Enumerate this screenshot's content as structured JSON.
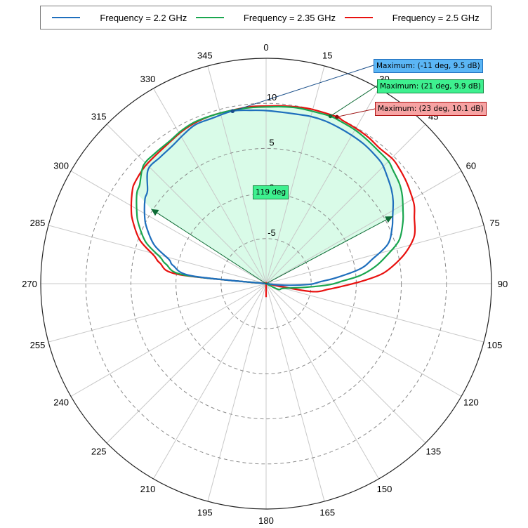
{
  "legend": {
    "items": [
      {
        "label": "Frequency = 2.2 GHz",
        "color": "#1f6fbd"
      },
      {
        "label": "Frequency = 2.35 GHz",
        "color": "#1aa64f"
      },
      {
        "label": "Frequency = 2.5 GHz",
        "color": "#e8110f"
      }
    ]
  },
  "annotations": {
    "max_2_2": "Maximum: (-11 deg, 9.5 dB)",
    "max_2_35": "Maximum: (21 deg, 9.9 dB)",
    "max_2_5": "Maximum: (23 deg, 10.1 dB)",
    "beamwidth": "119 deg"
  },
  "chart_data": {
    "type": "polar-line",
    "title": "",
    "angular_axis": {
      "unit": "deg",
      "direction": "clockwise",
      "zero": "top",
      "ticks": [
        0,
        15,
        30,
        45,
        60,
        75,
        90,
        105,
        120,
        135,
        150,
        165,
        180,
        195,
        210,
        225,
        240,
        255,
        270,
        285,
        300,
        315,
        330,
        345
      ]
    },
    "radial_axis": {
      "unit": "dB",
      "range": [
        -10,
        15
      ],
      "tick_labels": [
        -5,
        0,
        5,
        10
      ],
      "grid_circles": [
        -5,
        0,
        5,
        10
      ],
      "grid_style": "dashed"
    },
    "legend_position": "top",
    "series": [
      {
        "name": "Frequency = 2.2 GHz",
        "color": "#1f6fbd",
        "angles": [
          270,
          276,
          281,
          284,
          289,
          295,
          299,
          305,
          308,
          314,
          320,
          326,
          331,
          336,
          342,
          349,
          355,
          0,
          5,
          10,
          15,
          20,
          25,
          30,
          35,
          40,
          44,
          48,
          53,
          57,
          62,
          66,
          72,
          77,
          81,
          85,
          88,
          91,
          95,
          100,
          120,
          150,
          180,
          210,
          240,
          265
        ],
        "gain_db": [
          -10,
          -1.7,
          0.5,
          1.1,
          3.1,
          4.6,
          5.4,
          6.4,
          6.7,
          8.2,
          8.3,
          8.5,
          8.9,
          9.3,
          9.3,
          9.5,
          9.3,
          9.2,
          9.1,
          9.1,
          9.2,
          9.2,
          9.1,
          9.0,
          8.9,
          8.7,
          8.5,
          8.0,
          7.4,
          6.8,
          5.9,
          5.3,
          4.2,
          2.1,
          0.6,
          -2.1,
          -4.0,
          -5.2,
          -8.0,
          -10,
          -10,
          -10,
          -10,
          -10,
          -10,
          -10
        ]
      },
      {
        "name": "Frequency = 2.35 GHz",
        "color": "#1aa64f",
        "angles": [
          270,
          276,
          281,
          284,
          289,
          295,
          299,
          305,
          308,
          314,
          320,
          326,
          331,
          336,
          342,
          349,
          355,
          0,
          5,
          10,
          15,
          21,
          25,
          30,
          35,
          40,
          45,
          48,
          53,
          57,
          62,
          66,
          72,
          77,
          81,
          85,
          88,
          91,
          95,
          105,
          115,
          120,
          150,
          180,
          210,
          240,
          265
        ],
        "gain_db": [
          -10,
          -0.9,
          1.3,
          2.1,
          4.1,
          5.6,
          6.4,
          7.5,
          7.8,
          8.9,
          9.0,
          9.1,
          9.4,
          9.6,
          9.6,
          9.6,
          9.6,
          9.6,
          9.7,
          9.8,
          9.8,
          9.9,
          9.8,
          9.7,
          9.5,
          9.3,
          9.2,
          8.9,
          8.5,
          8.0,
          7.2,
          6.6,
          5.5,
          3.7,
          2.3,
          0.5,
          -1.5,
          -3.0,
          -5.5,
          -8.0,
          -8.5,
          -10,
          -10,
          -10,
          -10,
          -10,
          -10
        ]
      },
      {
        "name": "Frequency = 2.5 GHz",
        "color": "#e8110f",
        "angles": [
          270,
          276,
          281,
          284,
          289,
          295,
          299,
          305,
          308,
          314,
          320,
          326,
          331,
          336,
          342,
          349,
          355,
          0,
          5,
          10,
          15,
          23,
          25,
          30,
          35,
          40,
          45,
          48,
          53,
          57,
          62,
          66,
          72,
          77,
          81,
          85,
          88,
          91,
          95,
          100,
          105,
          170,
          180,
          190,
          195
        ],
        "gain_db": [
          -10,
          -0.2,
          2.0,
          2.8,
          4.8,
          6.3,
          7.1,
          8.1,
          8.4,
          8.7,
          8.8,
          9.0,
          9.3,
          9.5,
          9.6,
          9.6,
          9.7,
          9.7,
          9.8,
          9.9,
          10.0,
          10.1,
          10.0,
          9.9,
          9.8,
          9.6,
          9.7,
          9.6,
          9.3,
          9.0,
          8.6,
          8.0,
          7.3,
          6.0,
          4.6,
          3.0,
          1.0,
          -1.0,
          -3.0,
          -5.0,
          -10,
          -10,
          -8.5,
          -10,
          -10
        ]
      }
    ],
    "markers": [
      {
        "series": "Frequency = 2.2 GHz",
        "angle": -11,
        "gain_db": 9.5,
        "label": "Maximum: (-11 deg, 9.5 dB)"
      },
      {
        "series": "Frequency = 2.35 GHz",
        "angle": 21,
        "gain_db": 9.9,
        "label": "Maximum: (21 deg, 9.9 dB)"
      },
      {
        "series": "Frequency = 2.5 GHz",
        "angle": 23,
        "gain_db": 10.1,
        "label": "Maximum: (23 deg, 10.1 dB)"
      }
    ],
    "beamwidth": {
      "series": "Frequency = 2.35 GHz",
      "start_angle": 303,
      "end_angle": 62,
      "value_deg": 119,
      "label": "119 deg",
      "fill": "#d9fbe8"
    }
  }
}
